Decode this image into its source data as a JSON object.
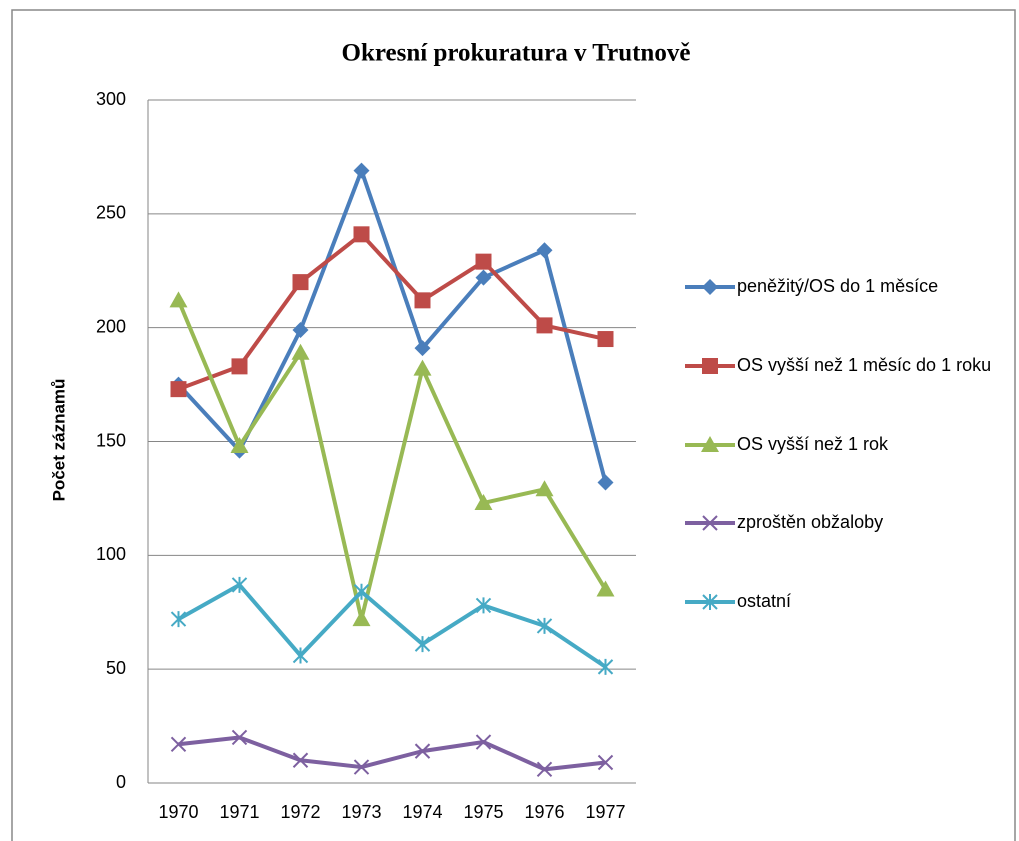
{
  "chart_data": {
    "type": "line",
    "title": "Okresní prokuratura v Trutnově",
    "y_label": "Počet záznamů",
    "categories": [
      "1970",
      "1971",
      "1972",
      "1973",
      "1974",
      "1975",
      "1976",
      "1977"
    ],
    "ylim": [
      0,
      300
    ],
    "yticks": [
      0,
      50,
      100,
      150,
      200,
      250,
      300
    ],
    "grid": true,
    "legend": "right",
    "series": [
      {
        "name": "peněžitý/OS do 1 měsíce",
        "color": "#4a7ebb",
        "marker": "diamond",
        "values": [
          175,
          146,
          199,
          269,
          191,
          222,
          234,
          132
        ]
      },
      {
        "name": "OS vyšší než 1 měsíc do 1 roku",
        "color": "#be4b48",
        "marker": "square",
        "values": [
          173,
          183,
          220,
          241,
          212,
          229,
          201,
          195
        ]
      },
      {
        "name": "OS vyšší než 1 rok",
        "color": "#98b954",
        "marker": "triangle",
        "values": [
          212,
          148,
          189,
          72,
          182,
          123,
          129,
          85
        ]
      },
      {
        "name": "zproštěn obžaloby",
        "color": "#7d60a0",
        "marker": "x",
        "values": [
          17,
          20,
          10,
          7,
          14,
          18,
          6,
          9
        ]
      },
      {
        "name": "ostatní",
        "color": "#46aac5",
        "marker": "star",
        "values": [
          72,
          87,
          56,
          84,
          61,
          78,
          69,
          51
        ]
      }
    ]
  }
}
